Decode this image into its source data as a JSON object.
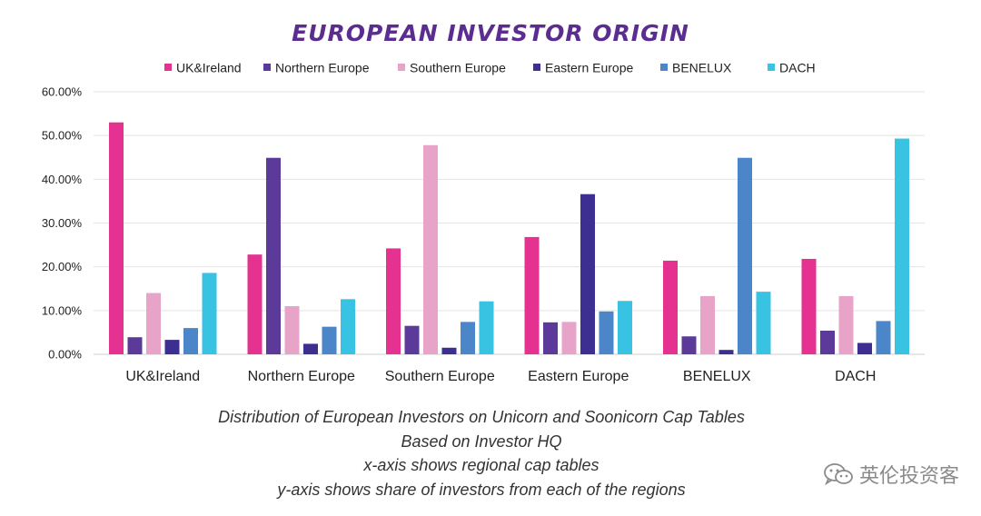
{
  "chart_data": {
    "type": "bar",
    "title": "EUROPEAN INVESTOR ORIGIN",
    "categories": [
      "UK&Ireland",
      "Northern Europe",
      "Southern Europe",
      "Eastern Europe",
      "BENELUX",
      "DACH"
    ],
    "series": [
      {
        "name": "UK&Ireland",
        "color": "#e5318f",
        "values": [
          53.0,
          22.8,
          24.2,
          26.8,
          21.4,
          21.8
        ]
      },
      {
        "name": "Northern Europe",
        "color": "#5b3a9a",
        "values": [
          3.9,
          44.9,
          6.5,
          7.3,
          4.1,
          5.4
        ]
      },
      {
        "name": "Southern Europe",
        "color": "#e8a3c9",
        "values": [
          14.0,
          11.0,
          47.8,
          7.4,
          13.3,
          13.3
        ]
      },
      {
        "name": "Eastern Europe",
        "color": "#3d2e91",
        "values": [
          3.3,
          2.4,
          1.5,
          36.6,
          1.0,
          2.6
        ]
      },
      {
        "name": "BENELUX",
        "color": "#4b86c9",
        "values": [
          6.0,
          6.3,
          7.4,
          9.8,
          44.9,
          7.6
        ]
      },
      {
        "name": "DACH",
        "color": "#39c3e3",
        "values": [
          18.6,
          12.6,
          12.1,
          12.2,
          14.3,
          49.3
        ]
      }
    ],
    "yticks": [
      "0.00%",
      "10.00%",
      "20.00%",
      "30.00%",
      "40.00%",
      "50.00%",
      "60.00%"
    ],
    "ylim": [
      0,
      60
    ],
    "grid": true,
    "legend": "top"
  },
  "caption": {
    "line1": "Distribution of European Investors on Unicorn and Soonicorn Cap Tables",
    "line2": "Based on Investor HQ",
    "line3": "x-axis shows regional cap tables",
    "line4": "y-axis shows share of investors from each of the regions"
  },
  "watermark": {
    "icon": "wechat-icon",
    "text": "英伦投资客"
  }
}
